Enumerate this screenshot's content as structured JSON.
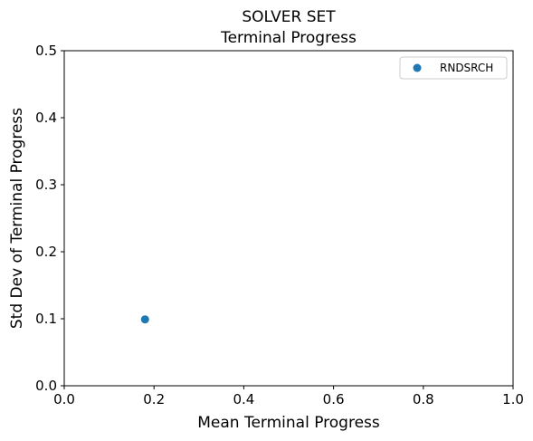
{
  "chart_data": {
    "type": "scatter",
    "title": [
      "SOLVER SET",
      "Terminal Progress"
    ],
    "xlabel": "Mean Terminal Progress",
    "ylabel": "Std Dev of Terminal Progress",
    "xlim": [
      0.0,
      1.0
    ],
    "ylim": [
      0.0,
      0.5
    ],
    "xticks": [
      "0.0",
      "0.2",
      "0.4",
      "0.6",
      "0.8",
      "1.0"
    ],
    "yticks": [
      "0.0",
      "0.1",
      "0.2",
      "0.3",
      "0.4",
      "0.5"
    ],
    "grid": false,
    "legend_position": "top-right",
    "series": [
      {
        "name": "RNDSRCH",
        "color": "#1f77b4",
        "points": [
          {
            "x": 0.18,
            "y": 0.099
          }
        ]
      }
    ]
  }
}
